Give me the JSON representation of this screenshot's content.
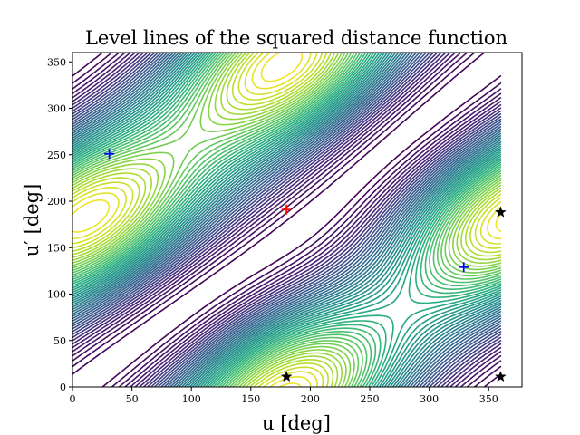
{
  "chart_data": {
    "type": "contour",
    "title": "Level lines of the squared distance function",
    "xlabel": "u [deg]",
    "ylabel": "u′ [deg]",
    "xlim": [
      0,
      378
    ],
    "ylim": [
      0,
      360
    ],
    "xticks": [
      "0",
      "50",
      "100",
      "150",
      "200",
      "250",
      "300",
      "350"
    ],
    "yticks": [
      "0",
      "50",
      "100",
      "150",
      "200",
      "250",
      "300",
      "350"
    ],
    "grid": false,
    "colormap": "viridis",
    "maximum_marker": {
      "u": 180,
      "up": 191,
      "marker": "plus",
      "color": "#ff0000"
    },
    "saddle_markers": [
      {
        "u": 31,
        "up": 251,
        "marker": "plus",
        "color": "#0000ff"
      },
      {
        "u": 329,
        "up": 129,
        "marker": "plus",
        "color": "#0000ff"
      }
    ],
    "minimum_markers": [
      {
        "u": 180,
        "up": 11,
        "marker": "star",
        "color": "#000000"
      },
      {
        "u": 360,
        "up": 11,
        "marker": "star",
        "color": "#000000"
      },
      {
        "u": 360,
        "up": 188,
        "marker": "star",
        "color": "#000000"
      }
    ]
  }
}
